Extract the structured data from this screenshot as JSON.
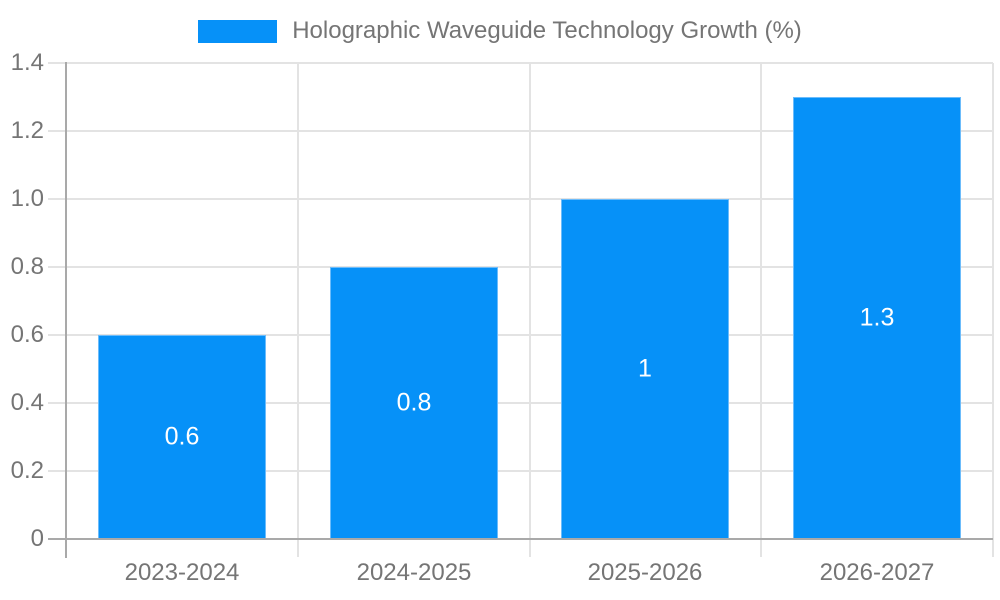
{
  "chart_data": {
    "type": "bar",
    "title": "",
    "xlabel": "",
    "ylabel": "",
    "legend_position": "top",
    "categories": [
      "2023-2024",
      "2024-2025",
      "2025-2026",
      "2026-2027"
    ],
    "series": [
      {
        "name": "Holographic Waveguide Technology Growth (%)",
        "values": [
          0.6,
          0.8,
          1,
          1.3
        ],
        "value_labels": [
          "0.6",
          "0.8",
          "1",
          "1.3"
        ]
      }
    ],
    "ylim": [
      0,
      1.4
    ],
    "y_ticks": [
      {
        "value": 0,
        "label": "0"
      },
      {
        "value": 0.2,
        "label": "0.2"
      },
      {
        "value": 0.4,
        "label": "0.4"
      },
      {
        "value": 0.6,
        "label": "0.6"
      },
      {
        "value": 0.8,
        "label": "0.8"
      },
      {
        "value": 1.0,
        "label": "1.0"
      },
      {
        "value": 1.2,
        "label": "1.2"
      },
      {
        "value": 1.4,
        "label": "1.4"
      }
    ],
    "grid": true
  },
  "colors": {
    "bar_fill": "#0691f8",
    "bar_border": "#6cbcfb",
    "grid_line": "#e3e3e3",
    "axis_line": "#a9a9a9",
    "tick_text": "#757575",
    "legend_text": "#757575",
    "value_label_text": "#ffffff",
    "background": "#ffffff"
  }
}
